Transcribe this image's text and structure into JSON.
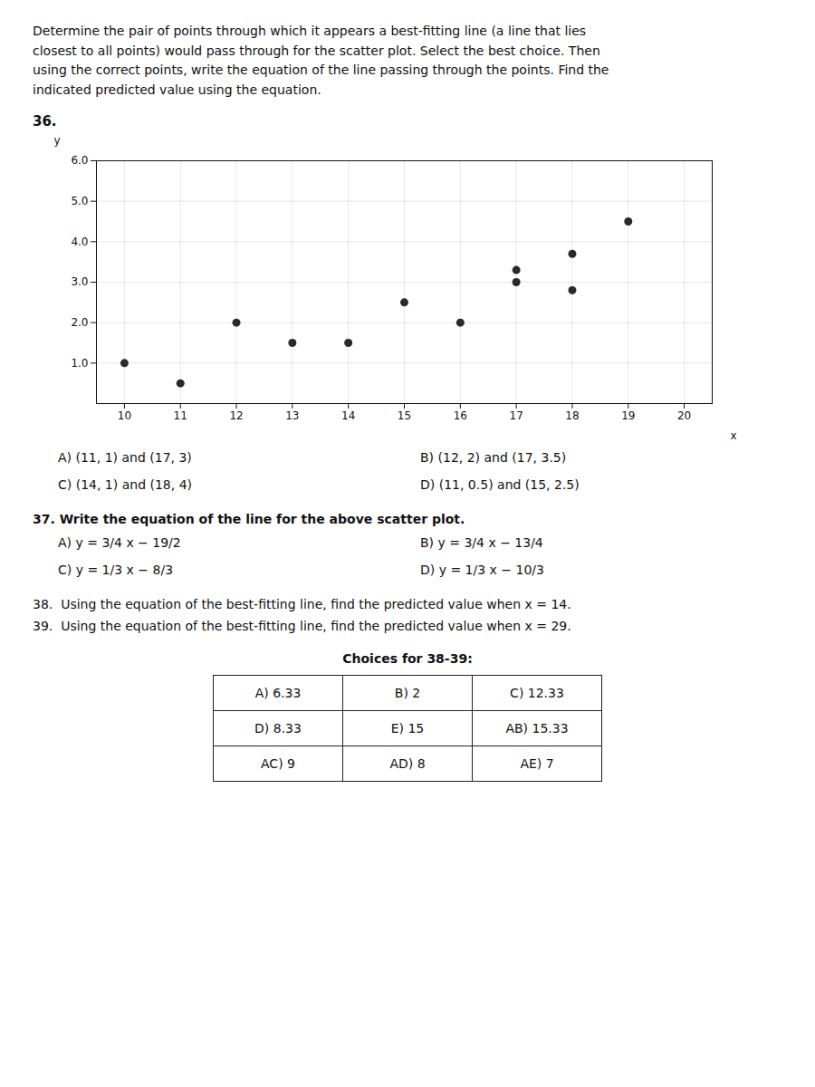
{
  "chart_data": {
    "type": "scatter",
    "title": "Determine the pair of points through which it appears a best-fitting line (a line that lies\nclosest to all points) would pass through for the scatter plot. Select the best choice. Then\nusing the correct points, write the equation of the line passing through the points. Find the\nindicated predicted value using the equation.",
    "x": [
      10,
      11,
      12,
      13,
      14,
      15,
      16,
      17,
      17,
      18,
      18,
      19
    ],
    "values": [
      1,
      0.5,
      2,
      1.5,
      1.5,
      2.5,
      2,
      3.3,
      3,
      3.7,
      2.8,
      4.5
    ],
    "x_label": "x",
    "y_label": "y",
    "xlim": [
      9.5,
      20.5
    ],
    "xticks": [
      10,
      11,
      12,
      13,
      14,
      15,
      16,
      17,
      18,
      19,
      20
    ],
    "ylim": [
      0,
      6
    ],
    "yticks": [
      1,
      2,
      3,
      4,
      5,
      6
    ],
    "grid": true,
    "color": "#2a2a2a",
    "annotations": [
      "36.",
      "A) (11, 1) and (17, 3)",
      "B) (12, 2) and (17, 3.5)",
      "C) (14, 1) and (18, 4)",
      "D) (11, 0.5) and (15, 2.5)",
      "37. Write the equation of the line for the above scatter plot.",
      "A) y = 3/4 x − 19/2",
      "B) y = 3/4 x − 13/4",
      "C) y = 1/3 x − 8/3",
      "D) y = 1/3 x − 10/3",
      "38.  Using the equation of the best-fitting line, find the predicted value when x = 14.",
      "39.  Using the equation of the best-fitting line, find the predicted value when x = 29.",
      "Choices for 38-39:",
      "A) 6.33",
      "B) 2",
      "C) 12.33",
      "D) 8.33",
      "E) 15",
      "AB) 15.33",
      "AC) 9",
      "AD) 8",
      "AE) 7"
    ]
  }
}
